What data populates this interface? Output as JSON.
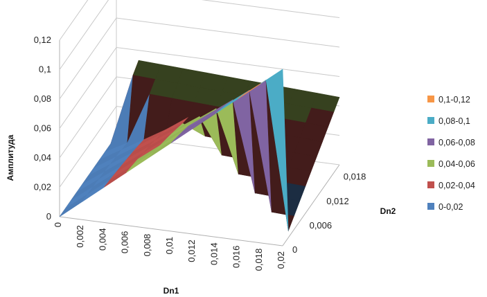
{
  "chart_data": {
    "type": "surface",
    "title": "",
    "zlabel": "Амплитуда",
    "xlabel": "Dn1",
    "ylabel": "Dn2",
    "z_ticks": [
      "0",
      "0,02",
      "0,04",
      "0,06",
      "0,08",
      "0,1",
      "0,12"
    ],
    "z_range": [
      0,
      0.12
    ],
    "x_ticks": [
      "0",
      "0,002",
      "0,004",
      "0,006",
      "0,008",
      "0,01",
      "0,012",
      "0,014",
      "0,016",
      "0,018",
      "0,02"
    ],
    "x_range": [
      0,
      0.02
    ],
    "y_ticks": [
      "0",
      "0,006",
      "0,012",
      "0,018"
    ],
    "y_range": [
      0,
      0.02
    ],
    "grid": true,
    "legend_position": "right",
    "legend": [
      {
        "label": "0,1-0,12",
        "color": "#f79646"
      },
      {
        "label": "0,08-0,1",
        "color": "#4bacc6"
      },
      {
        "label": "0,06-0,08",
        "color": "#8064a2"
      },
      {
        "label": "0,04-0,06",
        "color": "#9bbb59"
      },
      {
        "label": "0,02-0,04",
        "color": "#c0504d"
      },
      {
        "label": "0-0,02",
        "color": "#4f81bd"
      }
    ],
    "surface_peak": {
      "Dn1": 0.02,
      "Dn2": 0.0,
      "value": 0.12
    },
    "surface_ridge": {
      "Dn1": 0.0,
      "Dn2": 0.02,
      "value": 0.06
    }
  }
}
